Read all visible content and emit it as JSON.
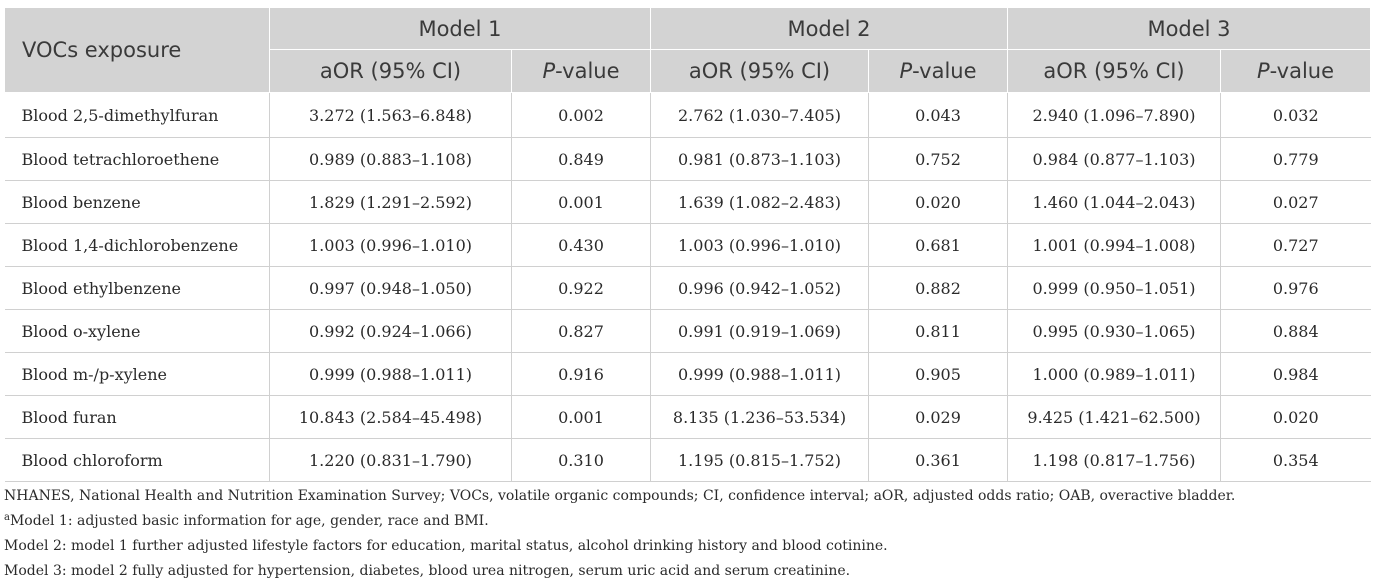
{
  "table": {
    "header": {
      "first_col": "VOCs exposure",
      "models": [
        "Model 1",
        "Model 2",
        "Model 3"
      ],
      "aor_label": "aOR (95% CI)",
      "p_italic": "P",
      "p_suffix": "-value"
    },
    "rows": [
      {
        "name": "Blood 2,5-dimethylfuran",
        "cells": [
          "3.272 (1.563–6.848)",
          "0.002",
          "2.762 (1.030–7.405)",
          "0.043",
          "2.940 (1.096–7.890)",
          "0.032"
        ]
      },
      {
        "name": "Blood tetrachloroethene",
        "cells": [
          "0.989 (0.883–1.108)",
          "0.849",
          "0.981 (0.873–1.103)",
          "0.752",
          "0.984 (0.877–1.103)",
          "0.779"
        ]
      },
      {
        "name": "Blood benzene",
        "cells": [
          "1.829 (1.291–2.592)",
          "0.001",
          "1.639 (1.082–2.483)",
          "0.020",
          "1.460 (1.044–2.043)",
          "0.027"
        ]
      },
      {
        "name": "Blood 1,4-dichlorobenzene",
        "cells": [
          "1.003 (0.996–1.010)",
          "0.430",
          "1.003 (0.996–1.010)",
          "0.681",
          "1.001 (0.994–1.008)",
          "0.727"
        ]
      },
      {
        "name": "Blood ethylbenzene",
        "cells": [
          "0.997 (0.948–1.050)",
          "0.922",
          "0.996 (0.942–1.052)",
          "0.882",
          "0.999 (0.950–1.051)",
          "0.976"
        ]
      },
      {
        "name": "Blood o-xylene",
        "cells": [
          "0.992 (0.924–1.066)",
          "0.827",
          "0.991 (0.919–1.069)",
          "0.811",
          "0.995 (0.930–1.065)",
          "0.884"
        ]
      },
      {
        "name": "Blood m-/p-xylene",
        "cells": [
          "0.999 (0.988–1.011)",
          "0.916",
          "0.999 (0.988–1.011)",
          "0.905",
          "1.000 (0.989–1.011)",
          "0.984"
        ]
      },
      {
        "name": "Blood furan",
        "cells": [
          "10.843 (2.584–45.498)",
          "0.001",
          "8.135 (1.236–53.534)",
          "0.029",
          "9.425 (1.421–62.500)",
          "0.020"
        ]
      },
      {
        "name": "Blood chloroform",
        "cells": [
          "1.220 (0.831–1.790)",
          "0.310",
          "1.195 (0.815–1.752)",
          "0.361",
          "1.198 (0.817–1.756)",
          "0.354"
        ]
      }
    ]
  },
  "notes": {
    "abbreviations": "NHANES, National Health and Nutrition Examination Survey; VOCs, volatile organic compounds; CI, confidence interval; aOR, adjusted odds ratio; OAB, overactive bladder.",
    "model1_marker": "a",
    "model1": "Model 1: adjusted basic information for age, gender, race and BMI.",
    "model2": "Model 2: model 1 further adjusted lifestyle factors for education, marital status, alcohol drinking history and blood cotinine.",
    "model3": "Model 3: model 2 fully adjusted for hypertension, diabetes, blood urea nitrogen, serum uric acid and serum creatinine."
  }
}
